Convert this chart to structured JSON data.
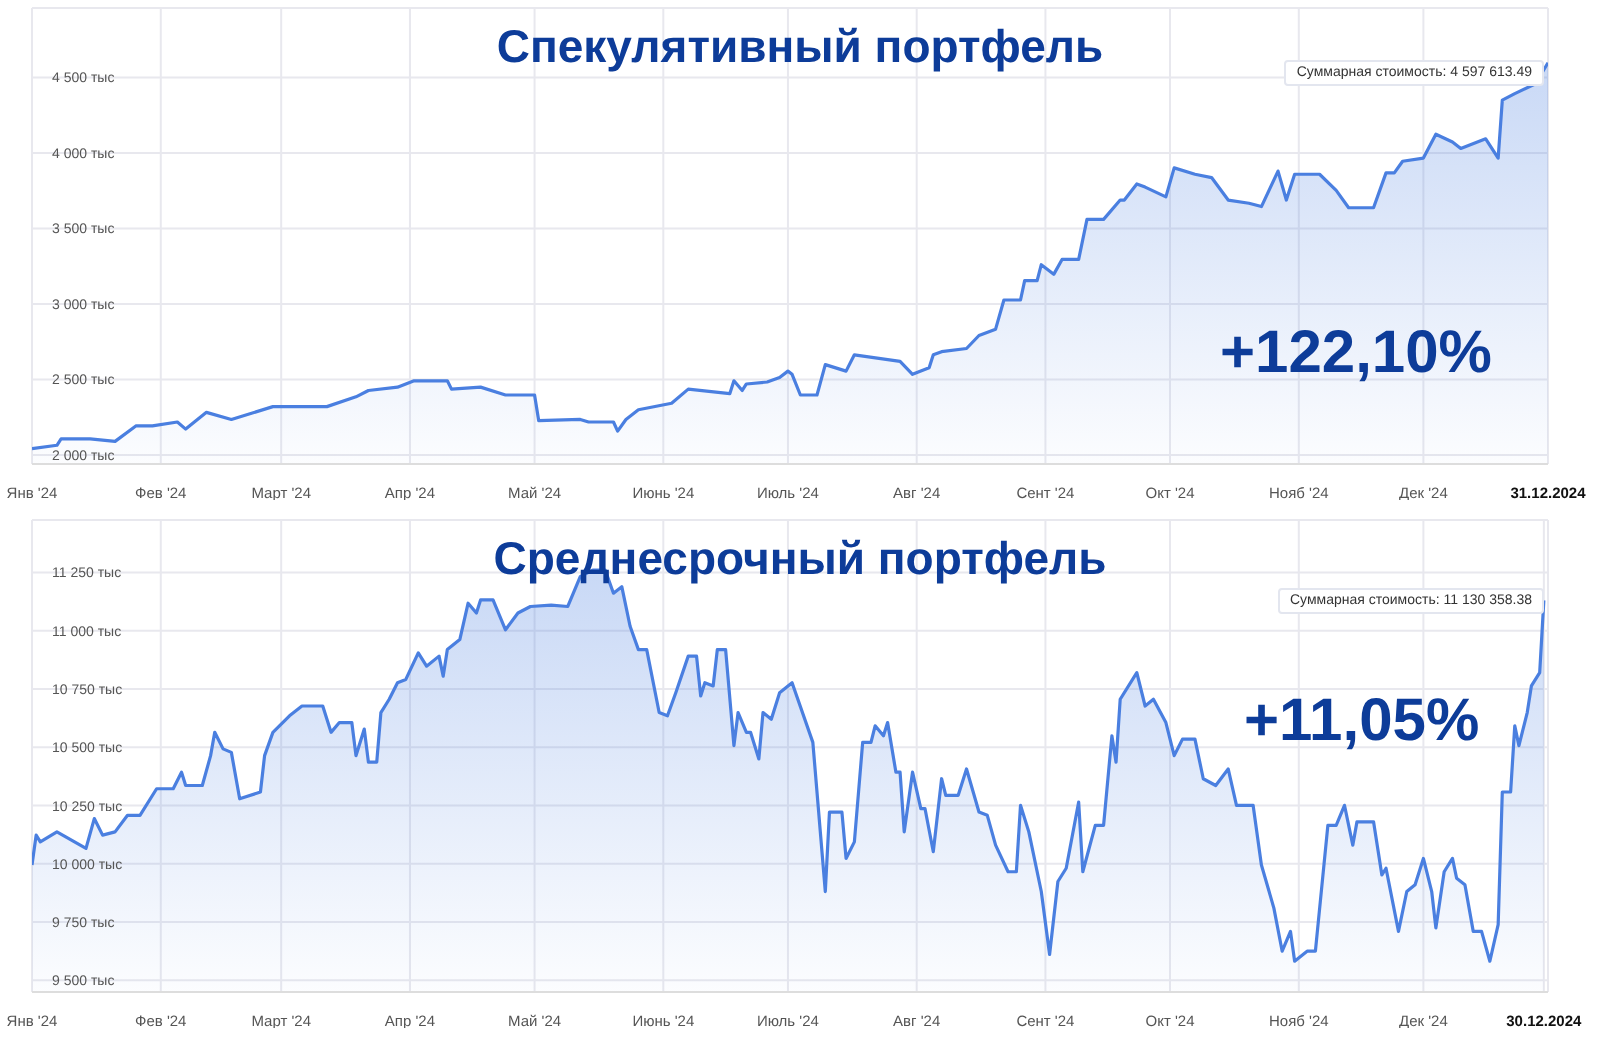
{
  "chart_data": [
    {
      "type": "area",
      "title": "Спекулятивный портфель",
      "grid": true,
      "series": [
        {
          "color": "#4a7fe0",
          "x": [
            "2024-01-01",
            "2024-01-07",
            "2024-01-08",
            "2024-01-15",
            "2024-01-21",
            "2024-01-26",
            "2024-01-30",
            "2024-02-05",
            "2024-02-07",
            "2024-02-12",
            "2024-02-18",
            "2024-02-28",
            "2024-03-12",
            "2024-03-19",
            "2024-03-22",
            "2024-03-29",
            "2024-04-02",
            "2024-04-10",
            "2024-04-11",
            "2024-04-18",
            "2024-04-24",
            "2024-05-01",
            "2024-05-02",
            "2024-05-12",
            "2024-05-14",
            "2024-05-20",
            "2024-05-21",
            "2024-05-23",
            "2024-05-26",
            "2024-06-03",
            "2024-06-07",
            "2024-06-17",
            "2024-06-18",
            "2024-06-20",
            "2024-06-21",
            "2024-06-26",
            "2024-06-29",
            "2024-07-01",
            "2024-07-02",
            "2024-07-04",
            "2024-07-08",
            "2024-07-10",
            "2024-07-15",
            "2024-07-17",
            "2024-07-28",
            "2024-07-31",
            "2024-08-04",
            "2024-08-05",
            "2024-08-07",
            "2024-08-13",
            "2024-08-16",
            "2024-08-20",
            "2024-08-22",
            "2024-08-26",
            "2024-08-27",
            "2024-08-30",
            "2024-08-31",
            "2024-09-03",
            "2024-09-05",
            "2024-09-09",
            "2024-09-11",
            "2024-09-15",
            "2024-09-19",
            "2024-09-20",
            "2024-09-23",
            "2024-09-25",
            "2024-09-30",
            "2024-10-02",
            "2024-10-07",
            "2024-10-11",
            "2024-10-15",
            "2024-10-20",
            "2024-10-23",
            "2024-10-27",
            "2024-10-29",
            "2024-10-31",
            "2024-11-06",
            "2024-11-10",
            "2024-11-13",
            "2024-11-19",
            "2024-11-22",
            "2024-11-24",
            "2024-11-26",
            "2024-12-01",
            "2024-12-04",
            "2024-12-08",
            "2024-12-10",
            "2024-12-16",
            "2024-12-19",
            "2024-12-20",
            "2024-12-23",
            "2024-12-28",
            "2024-12-31"
          ],
          "values": [
            2042,
            2064,
            2106,
            2106,
            2090,
            2192,
            2192,
            2218,
            2171,
            2282,
            2235,
            2320,
            2320,
            2385,
            2427,
            2449,
            2491,
            2491,
            2436,
            2449,
            2397,
            2397,
            2227,
            2235,
            2218,
            2218,
            2158,
            2235,
            2299,
            2342,
            2436,
            2406,
            2491,
            2427,
            2470,
            2483,
            2513,
            2555,
            2534,
            2397,
            2397,
            2598,
            2555,
            2663,
            2620,
            2534,
            2577,
            2663,
            2684,
            2705,
            2791,
            2833,
            3026,
            3026,
            3154,
            3154,
            3260,
            3196,
            3295,
            3295,
            3560,
            3560,
            3688,
            3688,
            3795,
            3774,
            3709,
            3901,
            3859,
            3837,
            3688,
            3667,
            3645,
            3880,
            3688,
            3859,
            3859,
            3752,
            3637,
            3637,
            3868,
            3868,
            3945,
            3966,
            4124,
            4073,
            4030,
            4094,
            3966,
            4350,
            4393,
            4458,
            4597.61349
          ]
        }
      ],
      "xlim": [
        "2024-01-01",
        "2024-12-31"
      ],
      "xticks": [
        {
          "value": "2024-01-01",
          "label": "Янв '24"
        },
        {
          "value": "2024-02-01",
          "label": "Фев '24"
        },
        {
          "value": "2024-03-01",
          "label": "Март '24"
        },
        {
          "value": "2024-04-01",
          "label": "Апр '24"
        },
        {
          "value": "2024-05-01",
          "label": "Май '24"
        },
        {
          "value": "2024-06-01",
          "label": "Июнь '24"
        },
        {
          "value": "2024-07-01",
          "label": "Июль '24"
        },
        {
          "value": "2024-08-01",
          "label": "Авг '24"
        },
        {
          "value": "2024-09-01",
          "label": "Сент '24"
        },
        {
          "value": "2024-10-01",
          "label": "Окт '24"
        },
        {
          "value": "2024-11-01",
          "label": "Нояб '24"
        },
        {
          "value": "2024-12-01",
          "label": "Дек '24"
        },
        {
          "value": "2024-12-31",
          "label": "31.12.2024"
        }
      ],
      "ylim": [
        1940,
        4960
      ],
      "yticks": [
        {
          "value": 2000,
          "label": "2 000 тыс"
        },
        {
          "value": 2500,
          "label": "2 500 тыс"
        },
        {
          "value": 3000,
          "label": "3 000 тыс"
        },
        {
          "value": 3500,
          "label": "3 500 тыс"
        },
        {
          "value": 4000,
          "label": "4 000 тыс"
        },
        {
          "value": 4500,
          "label": "4 500 тыс"
        }
      ],
      "annotations": [
        "Суммарная стоимость: 4 597 613.49",
        "+122,10%"
      ]
    },
    {
      "type": "area",
      "title": "Среднесрочный портфель",
      "grid": true,
      "series": [
        {
          "color": "#4a7fe0",
          "x": [
            "2024-01-01",
            "2024-01-02",
            "2024-01-03",
            "2024-01-07",
            "2024-01-14",
            "2024-01-16",
            "2024-01-18",
            "2024-01-21",
            "2024-01-24",
            "2024-01-27",
            "2024-01-31",
            "2024-02-04",
            "2024-02-06",
            "2024-02-07",
            "2024-02-11",
            "2024-02-13",
            "2024-02-14",
            "2024-02-16",
            "2024-02-18",
            "2024-02-20",
            "2024-02-25",
            "2024-02-26",
            "2024-02-28",
            "2024-03-03",
            "2024-03-06",
            "2024-03-11",
            "2024-03-13",
            "2024-03-15",
            "2024-03-18",
            "2024-03-19",
            "2024-03-21",
            "2024-03-22",
            "2024-03-24",
            "2024-03-25",
            "2024-03-27",
            "2024-03-29",
            "2024-03-31",
            "2024-04-03",
            "2024-04-05",
            "2024-04-08",
            "2024-04-09",
            "2024-04-10",
            "2024-04-13",
            "2024-04-15",
            "2024-04-17",
            "2024-04-18",
            "2024-04-21",
            "2024-04-24",
            "2024-04-27",
            "2024-04-30",
            "2024-05-05",
            "2024-05-09",
            "2024-05-12",
            "2024-05-15",
            "2024-05-18",
            "2024-05-20",
            "2024-05-22",
            "2024-05-24",
            "2024-05-26",
            "2024-05-28",
            "2024-05-31",
            "2024-06-02",
            "2024-06-04",
            "2024-06-07",
            "2024-06-09",
            "2024-06-10",
            "2024-06-11",
            "2024-06-13",
            "2024-06-14",
            "2024-06-16",
            "2024-06-18",
            "2024-06-19",
            "2024-06-21",
            "2024-06-22",
            "2024-06-24",
            "2024-06-25",
            "2024-06-27",
            "2024-06-29",
            "2024-07-02",
            "2024-07-07",
            "2024-07-10",
            "2024-07-11",
            "2024-07-14",
            "2024-07-15",
            "2024-07-17",
            "2024-07-19",
            "2024-07-21",
            "2024-07-22",
            "2024-07-24",
            "2024-07-25",
            "2024-07-27",
            "2024-07-28",
            "2024-07-29",
            "2024-07-31",
            "2024-08-02",
            "2024-08-03",
            "2024-08-05",
            "2024-08-07",
            "2024-08-08",
            "2024-08-11",
            "2024-08-13",
            "2024-08-16",
            "2024-08-18",
            "2024-08-20",
            "2024-08-23",
            "2024-08-25",
            "2024-08-26",
            "2024-08-28",
            "2024-08-31",
            "2024-09-02",
            "2024-09-04",
            "2024-09-06",
            "2024-09-09",
            "2024-09-10",
            "2024-09-13",
            "2024-09-15",
            "2024-09-17",
            "2024-09-18",
            "2024-09-19",
            "2024-09-23",
            "2024-09-25",
            "2024-09-27",
            "2024-09-30",
            "2024-10-02",
            "2024-10-04",
            "2024-10-07",
            "2024-10-09",
            "2024-10-12",
            "2024-10-15",
            "2024-10-17",
            "2024-10-21",
            "2024-10-23",
            "2024-10-26",
            "2024-10-28",
            "2024-10-30",
            "2024-10-31",
            "2024-11-03",
            "2024-11-05",
            "2024-11-08",
            "2024-11-10",
            "2024-11-12",
            "2024-11-14",
            "2024-11-15",
            "2024-11-19",
            "2024-11-21",
            "2024-11-22",
            "2024-11-25",
            "2024-11-27",
            "2024-11-29",
            "2024-12-01",
            "2024-12-03",
            "2024-12-04",
            "2024-12-06",
            "2024-12-08",
            "2024-12-09",
            "2024-12-11",
            "2024-12-13",
            "2024-12-15",
            "2024-12-17",
            "2024-12-19",
            "2024-12-20",
            "2024-12-22",
            "2024-12-23",
            "2024-12-24",
            "2024-12-26",
            "2024-12-27",
            "2024-12-29",
            "2024-12-30"
          ],
          "values": [
            9995,
            10123,
            10094,
            10137,
            10066,
            10194,
            10123,
            10137,
            10208,
            10208,
            10322,
            10322,
            10393,
            10336,
            10336,
            10464,
            10564,
            10493,
            10478,
            10279,
            10308,
            10464,
            10564,
            10635,
            10677,
            10677,
            10564,
            10606,
            10606,
            10464,
            10578,
            10436,
            10436,
            10649,
            10706,
            10777,
            10791,
            10905,
            10848,
            10891,
            10805,
            10919,
            10962,
            11118,
            11076,
            11132,
            11132,
            11004,
            11076,
            11104,
            11110,
            11104,
            11232,
            11260,
            11260,
            11161,
            11189,
            11019,
            10919,
            10919,
            10649,
            10635,
            10734,
            10891,
            10891,
            10720,
            10777,
            10763,
            10919,
            10919,
            10507,
            10649,
            10564,
            10564,
            10450,
            10649,
            10620,
            10734,
            10777,
            10521,
            9881,
            10222,
            10222,
            10023,
            10094,
            10521,
            10521,
            10592,
            10549,
            10606,
            10393,
            10393,
            10137,
            10393,
            10237,
            10237,
            10052,
            10365,
            10294,
            10294,
            10407,
            10222,
            10208,
            10080,
            9966,
            9966,
            10251,
            10137,
            9881,
            9611,
            9924,
            9981,
            10265,
            9966,
            10165,
            10165,
            10549,
            10436,
            10706,
            10820,
            10677,
            10706,
            10606,
            10464,
            10535,
            10535,
            10365,
            10336,
            10407,
            10251,
            10251,
            9995,
            9810,
            9625,
            9710,
            9582,
            9625,
            9625,
            10165,
            10165,
            10251,
            10080,
            10180,
            10180,
            9952,
            9981,
            9710,
            9881,
            9910,
            10023,
            9881,
            9725,
            9966,
            10023,
            9938,
            9910,
            9710,
            9710,
            9582,
            9739,
            10308,
            10308,
            10592,
            10507,
            10649,
            10763,
            10820,
            11130.35838
          ]
        }
      ],
      "xlim": [
        "2024-01-01",
        "2024-12-31"
      ],
      "xticks": [
        {
          "value": "2024-01-01",
          "label": "Янв '24"
        },
        {
          "value": "2024-02-01",
          "label": "Фев '24"
        },
        {
          "value": "2024-03-01",
          "label": "Март '24"
        },
        {
          "value": "2024-04-01",
          "label": "Апр '24"
        },
        {
          "value": "2024-05-01",
          "label": "Май '24"
        },
        {
          "value": "2024-06-01",
          "label": "Июнь '24"
        },
        {
          "value": "2024-07-01",
          "label": "Июль '24"
        },
        {
          "value": "2024-08-01",
          "label": "Авг '24"
        },
        {
          "value": "2024-09-01",
          "label": "Сент '24"
        },
        {
          "value": "2024-10-01",
          "label": "Окт '24"
        },
        {
          "value": "2024-11-01",
          "label": "Нояб '24"
        },
        {
          "value": "2024-12-01",
          "label": "Дек '24"
        },
        {
          "value": "2024-12-30",
          "label": "30.12.2024"
        }
      ],
      "ylim": [
        9450,
        11475
      ],
      "yticks": [
        {
          "value": 9500,
          "label": "9 500 тыс"
        },
        {
          "value": 9750,
          "label": "9 750 тыс"
        },
        {
          "value": 10000,
          "label": "10 000 тыс"
        },
        {
          "value": 10250,
          "label": "10 250 тыс"
        },
        {
          "value": 10500,
          "label": "10 500 тыс"
        },
        {
          "value": 10750,
          "label": "10 750 тыс"
        },
        {
          "value": 11000,
          "label": "11 000 тыс"
        },
        {
          "value": 11250,
          "label": "11 250 тыс"
        }
      ],
      "annotations": [
        "Суммарная стоимость: 11 130 358.38",
        "+11,05%"
      ]
    }
  ]
}
